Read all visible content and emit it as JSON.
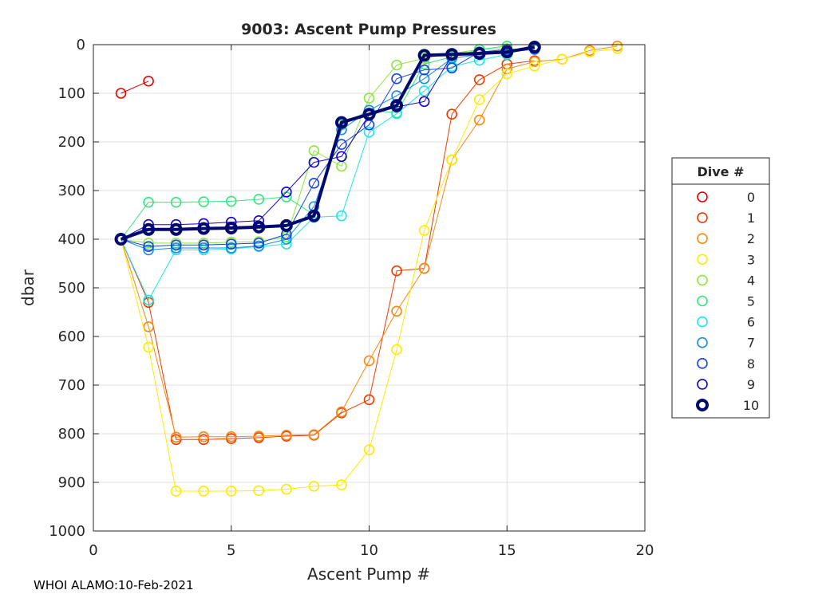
{
  "chart_data": {
    "type": "line",
    "title": "9003: Ascent Pump Pressures",
    "xlabel": "Ascent Pump #",
    "ylabel": "dbar",
    "xlim": [
      0,
      20
    ],
    "ylim": [
      0,
      1000
    ],
    "y_reversed": true,
    "grid": true,
    "xticks": [
      0,
      5,
      10,
      15,
      20
    ],
    "yticks": [
      0,
      100,
      200,
      300,
      400,
      500,
      600,
      700,
      800,
      900,
      1000
    ],
    "marker": "open-circle",
    "legend": {
      "title": "Dive #",
      "placement": "outside-right"
    },
    "series": [
      {
        "name": "0",
        "color": "#e60000",
        "emphasis": false,
        "x": [
          1,
          2
        ],
        "y": [
          100,
          75
        ]
      },
      {
        "name": "1",
        "color": "#f03a00",
        "emphasis": false,
        "x": [
          1,
          2,
          3,
          4,
          5,
          6,
          7,
          8,
          9,
          10,
          11,
          12,
          13,
          14,
          15,
          16
        ],
        "y": [
          400,
          530,
          812,
          812,
          810,
          808,
          805,
          803,
          757,
          730,
          465,
          460,
          143,
          72,
          40,
          33
        ]
      },
      {
        "name": "2",
        "color": "#f58a12",
        "emphasis": false,
        "x": [
          1,
          2,
          3,
          4,
          5,
          6,
          7,
          8,
          9,
          10,
          11,
          12,
          13,
          14,
          15,
          16,
          17,
          18,
          19
        ],
        "y": [
          400,
          580,
          807,
          806,
          806,
          805,
          803,
          802,
          755,
          650,
          548,
          460,
          237,
          155,
          50,
          35,
          30,
          12,
          3
        ]
      },
      {
        "name": "3",
        "color": "#ffea00",
        "emphasis": false,
        "x": [
          1,
          2,
          3,
          4,
          5,
          6,
          7,
          8,
          9,
          10,
          11,
          12,
          13,
          14,
          15,
          16,
          17,
          18,
          19
        ],
        "y": [
          400,
          622,
          918,
          918,
          918,
          917,
          914,
          908,
          905,
          833,
          627,
          382,
          237,
          113,
          60,
          44,
          30,
          15,
          8
        ]
      },
      {
        "name": "4",
        "color": "#8ce63c",
        "emphasis": false,
        "x": [
          1,
          2,
          3,
          4,
          5,
          6,
          7,
          8,
          9,
          10,
          11,
          12,
          13,
          14,
          15
        ],
        "y": [
          400,
          408,
          408,
          408,
          406,
          405,
          395,
          218,
          250,
          110,
          42,
          28,
          18,
          10,
          8
        ]
      },
      {
        "name": "5",
        "color": "#34e67e",
        "emphasis": false,
        "x": [
          1,
          2,
          3,
          4,
          5,
          6,
          7,
          8,
          9,
          10,
          11,
          12,
          13,
          14,
          15
        ],
        "y": [
          400,
          324,
          324,
          323,
          322,
          318,
          313,
          350,
          165,
          135,
          140,
          40,
          25,
          10,
          3
        ]
      },
      {
        "name": "6",
        "color": "#1ee6e6",
        "emphasis": false,
        "x": [
          1,
          2,
          3,
          4,
          5,
          6,
          7,
          8,
          9,
          10,
          11,
          12,
          13,
          14,
          15
        ],
        "y": [
          400,
          525,
          422,
          422,
          420,
          415,
          410,
          355,
          352,
          180,
          142,
          95,
          45,
          32,
          20
        ]
      },
      {
        "name": "7",
        "color": "#1a8ce6",
        "emphasis": false,
        "x": [
          1,
          2,
          3,
          4,
          5,
          6,
          7,
          8,
          9,
          10,
          11,
          12,
          13,
          14,
          15,
          16
        ],
        "y": [
          400,
          422,
          418,
          418,
          418,
          414,
          400,
          333,
          175,
          135,
          105,
          70,
          28,
          20,
          15,
          10
        ]
      },
      {
        "name": "8",
        "color": "#1846e0",
        "emphasis": false,
        "x": [
          1,
          2,
          3,
          4,
          5,
          6,
          7,
          8,
          9,
          10,
          11,
          12,
          13,
          14,
          15,
          16
        ],
        "y": [
          400,
          415,
          412,
          412,
          410,
          408,
          390,
          285,
          205,
          165,
          70,
          52,
          48,
          15,
          10,
          8
        ]
      },
      {
        "name": "9",
        "color": "#1400d2",
        "emphasis": false,
        "x": [
          1,
          2,
          3,
          4,
          5,
          6,
          7,
          8,
          9,
          10,
          11,
          12,
          13,
          14,
          15
        ],
        "y": [
          400,
          370,
          370,
          368,
          365,
          362,
          303,
          242,
          230,
          145,
          128,
          117,
          22,
          18,
          15
        ]
      },
      {
        "name": "10",
        "color": "#000a6e",
        "emphasis": true,
        "x": [
          1,
          2,
          3,
          4,
          5,
          6,
          7,
          8,
          9,
          10,
          11,
          12,
          13,
          14,
          15,
          16
        ],
        "y": [
          400,
          380,
          380,
          378,
          377,
          375,
          372,
          352,
          160,
          143,
          125,
          22,
          20,
          18,
          15,
          5
        ]
      }
    ]
  },
  "footer": {
    "text": "WHOI ALAMO:10-Feb-2021"
  }
}
